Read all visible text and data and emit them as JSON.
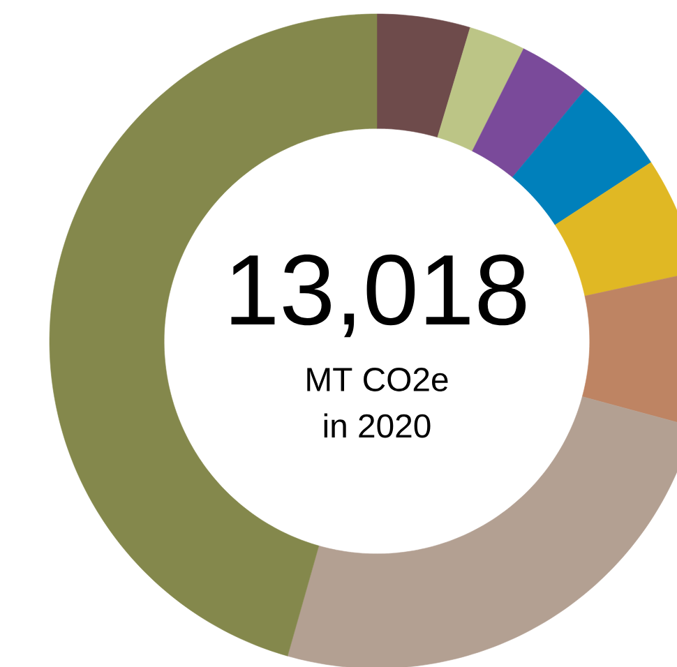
{
  "chart_data": {
    "type": "donut",
    "title": "13,018",
    "annotations": [
      "MT CO2e",
      "in 2020"
    ],
    "categories": [
      null,
      null,
      null,
      null,
      null,
      null,
      null,
      null
    ],
    "values": [
      4.6,
      2.8,
      3.6,
      4.8,
      5.8,
      7.6,
      25.2,
      45.6
    ],
    "colors": [
      "#6e4b4b",
      "#bcc586",
      "#7a4a9a",
      "#0080bb",
      "#e0b824",
      "#be8463",
      "#b3a092",
      "#84884c"
    ]
  }
}
